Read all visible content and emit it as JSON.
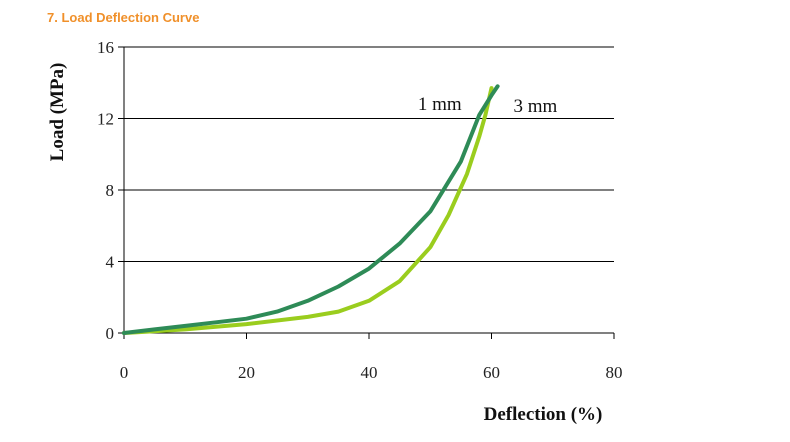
{
  "heading": "7. Load Deflection Curve",
  "chart_data": {
    "type": "line",
    "title": "",
    "xlabel": "Deflection (%)",
    "ylabel": "Load (MPa)",
    "xlim": [
      0,
      80
    ],
    "ylim": [
      0,
      16
    ],
    "xticks": [
      0,
      20,
      40,
      60,
      80
    ],
    "yticks": [
      0,
      4,
      8,
      12,
      16
    ],
    "grid": "horizontal",
    "colors": {
      "1 mm": "#2e8b57",
      "3 mm": "#9acd1e"
    },
    "series": [
      {
        "name": "1 mm",
        "x": [
          0,
          5,
          10,
          15,
          20,
          25,
          30,
          35,
          40,
          45,
          50,
          55,
          58,
          60,
          61
        ],
        "y": [
          0,
          0.2,
          0.4,
          0.6,
          0.8,
          1.2,
          1.8,
          2.6,
          3.6,
          5.0,
          6.8,
          9.6,
          12.2,
          13.3,
          13.8
        ]
      },
      {
        "name": "3 mm",
        "x": [
          0,
          10,
          20,
          30,
          35,
          40,
          45,
          50,
          53,
          56,
          58,
          59,
          60
        ],
        "y": [
          0,
          0.2,
          0.5,
          0.9,
          1.2,
          1.8,
          2.9,
          4.8,
          6.6,
          8.9,
          11.0,
          12.2,
          13.7
        ]
      }
    ]
  }
}
